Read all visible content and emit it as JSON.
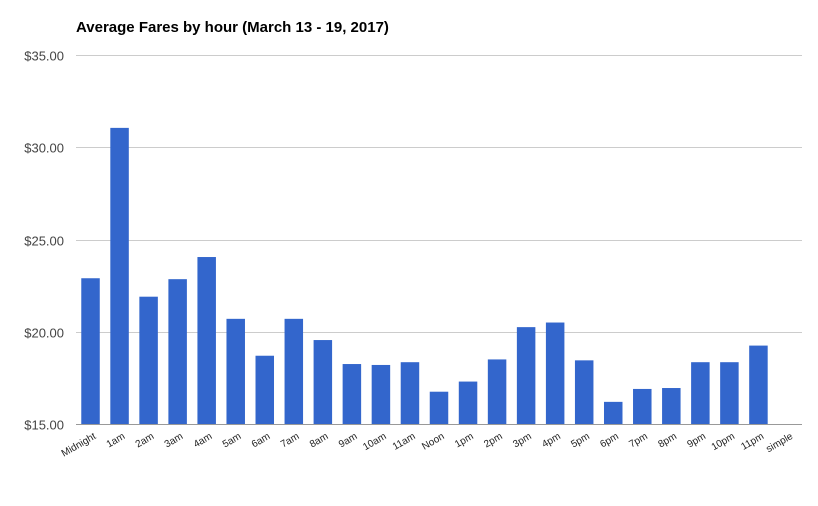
{
  "chart_data": {
    "type": "bar",
    "title": "Average Fares by hour (March 13 - 19, 2017)",
    "xlabel": "",
    "ylabel": "",
    "ylim": [
      15,
      35
    ],
    "yticks": [
      15,
      20,
      25,
      30,
      35
    ],
    "ytick_labels": [
      "$15.00",
      "$20.00",
      "$25.00",
      "$30.00",
      "$35.00"
    ],
    "grid": true,
    "bar_color": "#3366cc",
    "categories": [
      "Midnight",
      "1am",
      "2am",
      "3am",
      "4am",
      "5am",
      "6am",
      "7am",
      "8am",
      "9am",
      "10am",
      "11am",
      "Noon",
      "1pm",
      "2pm",
      "3pm",
      "4pm",
      "5pm",
      "6pm",
      "7pm",
      "8pm",
      "9pm",
      "10pm",
      "11pm",
      "simple"
    ],
    "values": [
      22.9,
      31.05,
      21.9,
      22.85,
      24.05,
      20.7,
      18.7,
      20.7,
      19.55,
      18.25,
      18.2,
      18.35,
      16.75,
      17.3,
      18.5,
      20.25,
      20.5,
      18.45,
      16.2,
      16.9,
      16.95,
      18.35,
      18.35,
      19.25,
      null
    ]
  }
}
